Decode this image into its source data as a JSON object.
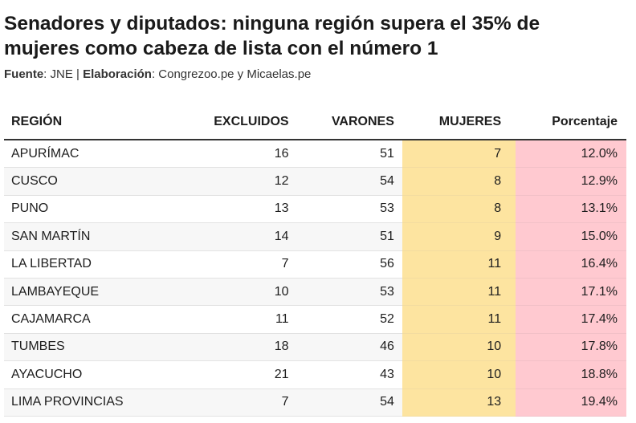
{
  "title": "Senadores y diputados: ninguna región supera el 35% de mujeres como cabeza de lista con el número 1",
  "source": {
    "label1": "Fuente",
    "value1": ": JNE | ",
    "label2": "Elaboración",
    "value2": ": Congrezoo.pe y Micaelas.pe"
  },
  "colors": {
    "mujeres": "#fde4a0",
    "porcentaje": "#ffc9d0"
  },
  "chart_data": {
    "type": "table",
    "columns": [
      "REGIÓN",
      "EXCLUIDOS",
      "VARONES",
      "MUJERES",
      "Porcentaje"
    ],
    "rows": [
      [
        "APURÍMAC",
        "16",
        "51",
        "7",
        "12.0%"
      ],
      [
        "CUSCO",
        "12",
        "54",
        "8",
        "12.9%"
      ],
      [
        "PUNO",
        "13",
        "53",
        "8",
        "13.1%"
      ],
      [
        "SAN MARTÍN",
        "14",
        "51",
        "9",
        "15.0%"
      ],
      [
        "LA LIBERTAD",
        "7",
        "56",
        "11",
        "16.4%"
      ],
      [
        "LAMBAYEQUE",
        "10",
        "53",
        "11",
        "17.1%"
      ],
      [
        "CAJAMARCA",
        "11",
        "52",
        "11",
        "17.4%"
      ],
      [
        "TUMBES",
        "18",
        "46",
        "10",
        "17.8%"
      ],
      [
        "AYACUCHO",
        "21",
        "43",
        "10",
        "18.8%"
      ],
      [
        "LIMA PROVINCIAS",
        "7",
        "54",
        "13",
        "19.4%"
      ]
    ]
  }
}
